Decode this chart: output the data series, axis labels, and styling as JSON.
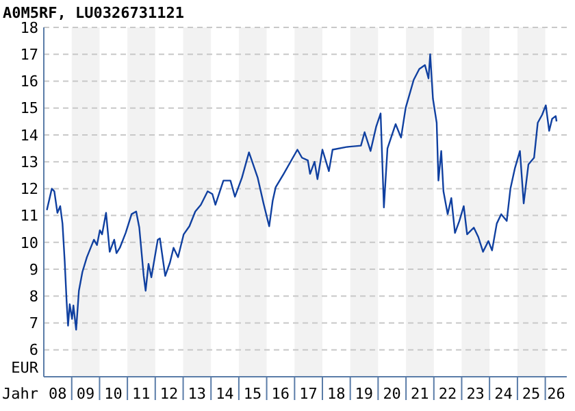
{
  "chart_data": {
    "type": "line",
    "title": "A0M5RF, LU0326731121",
    "xlabel": "Jahr",
    "ylabel": "EUR",
    "xlim": [
      "2008-01-01",
      "2026-10-10"
    ],
    "ylim": [
      5,
      18
    ],
    "xticks": [
      {
        "value": "2008-07-01",
        "label": "08"
      },
      {
        "value": "2009-07-01",
        "label": "09"
      },
      {
        "value": "2010-07-01",
        "label": "10"
      },
      {
        "value": "2011-07-01",
        "label": "11"
      },
      {
        "value": "2012-07-01",
        "label": "12"
      },
      {
        "value": "2013-07-01",
        "label": "13"
      },
      {
        "value": "2014-07-01",
        "label": "14"
      },
      {
        "value": "2015-07-01",
        "label": "15"
      },
      {
        "value": "2016-07-01",
        "label": "16"
      },
      {
        "value": "2017-07-01",
        "label": "17"
      },
      {
        "value": "2018-07-01",
        "label": "18"
      },
      {
        "value": "2019-07-01",
        "label": "19"
      },
      {
        "value": "2020-07-01",
        "label": "20"
      },
      {
        "value": "2021-07-01",
        "label": "21"
      },
      {
        "value": "2022-07-01",
        "label": "22"
      },
      {
        "value": "2023-07-01",
        "label": "23"
      },
      {
        "value": "2024-07-01",
        "label": "24"
      },
      {
        "value": "2025-07-01",
        "label": "25"
      },
      {
        "value": "2026-05-25",
        "label": "26"
      }
    ],
    "yticks": [
      6,
      7,
      8,
      9,
      10,
      11,
      12,
      13,
      14,
      15,
      16,
      17,
      18
    ],
    "grid": "y",
    "marker": "none",
    "line_style": "solid",
    "bands": [
      {
        "axis": "x",
        "from": "2009-01-01",
        "to": "2010-01-01",
        "color": "#f2f2f2"
      },
      {
        "axis": "x",
        "from": "2011-01-01",
        "to": "2012-01-01",
        "color": "#f2f2f2"
      },
      {
        "axis": "x",
        "from": "2013-01-01",
        "to": "2014-01-01",
        "color": "#f2f2f2"
      },
      {
        "axis": "x",
        "from": "2015-01-01",
        "to": "2016-01-01",
        "color": "#f2f2f2"
      },
      {
        "axis": "x",
        "from": "2017-01-01",
        "to": "2018-01-01",
        "color": "#f2f2f2"
      },
      {
        "axis": "x",
        "from": "2019-01-01",
        "to": "2020-01-01",
        "color": "#f2f2f2"
      },
      {
        "axis": "x",
        "from": "2021-01-01",
        "to": "2022-01-01",
        "color": "#f2f2f2"
      },
      {
        "axis": "x",
        "from": "2023-01-01",
        "to": "2024-01-01",
        "color": "#f2f2f2"
      },
      {
        "axis": "x",
        "from": "2025-01-01",
        "to": "2026-01-01",
        "color": "#f2f2f2"
      }
    ],
    "series": [
      {
        "color": "#1040a0",
        "x": [
          "2008-02-10",
          "2008-04-15",
          "2008-05-18",
          "2008-06-27",
          "2008-08-03",
          "2008-09-02",
          "2008-10-01",
          "2008-10-26",
          "2008-11-14",
          "2008-12-06",
          "2009-01-05",
          "2009-01-23",
          "2009-02-28",
          "2009-04-05",
          "2009-05-21",
          "2009-07-19",
          "2009-10-19",
          "2009-11-28",
          "2010-01-05",
          "2010-02-03",
          "2010-03-27",
          "2010-05-14",
          "2010-07-12",
          "2010-08-11",
          "2010-09-24",
          "2010-12-09",
          "2011-02-25",
          "2011-04-26",
          "2011-06-06",
          "2011-08-03",
          "2011-08-28",
          "2011-10-05",
          "2011-11-11",
          "2011-12-20",
          "2012-02-03",
          "2012-03-02",
          "2012-05-11",
          "2012-07-12",
          "2012-08-28",
          "2012-10-26",
          "2013-01-08",
          "2013-03-24",
          "2013-06-09",
          "2013-08-21",
          "2013-11-18",
          "2014-01-19",
          "2014-02-28",
          "2014-06-13",
          "2014-09-13",
          "2014-11-11",
          "2015-02-10",
          "2015-05-14",
          "2015-07-08",
          "2015-09-06",
          "2015-11-21",
          "2016-02-03",
          "2016-03-20",
          "2016-04-28",
          "2016-08-11",
          "2017-02-07",
          "2017-04-08",
          "2017-06-24",
          "2017-07-23",
          "2017-09-20",
          "2017-10-28",
          "2018-01-01",
          "2018-03-27",
          "2018-05-14",
          "2018-11-11",
          "2019-05-21",
          "2019-07-08",
          "2019-09-24",
          "2019-12-06",
          "2020-02-03",
          "2020-03-17",
          "2020-05-03",
          "2020-07-01",
          "2020-08-18",
          "2020-10-28",
          "2020-12-27",
          "2021-04-12",
          "2021-06-24",
          "2021-09-06",
          "2021-10-23",
          "2021-11-14",
          "2021-12-20",
          "2022-02-07",
          "2022-03-02",
          "2022-04-08",
          "2022-05-07",
          "2022-07-01",
          "2022-08-18",
          "2022-10-05",
          "2022-12-02",
          "2023-01-28",
          "2023-03-13",
          "2023-06-09",
          "2023-08-07",
          "2023-10-08",
          "2023-12-17",
          "2024-02-03",
          "2024-04-05",
          "2024-06-02",
          "2024-08-14",
          "2024-10-01",
          "2024-11-28",
          "2025-02-03",
          "2025-03-24",
          "2025-05-25",
          "2025-08-07",
          "2025-09-24",
          "2025-11-21",
          "2026-01-08",
          "2026-02-21",
          "2026-04-01",
          "2026-05-18",
          "2026-05-29"
        ],
        "values": [
          11.2,
          12.0,
          11.9,
          11.1,
          11.35,
          10.7,
          9.3,
          7.8,
          6.9,
          7.7,
          7.15,
          7.65,
          6.75,
          8.2,
          8.9,
          9.45,
          10.1,
          9.9,
          10.45,
          10.3,
          11.1,
          9.65,
          10.1,
          9.6,
          9.8,
          10.35,
          11.05,
          11.15,
          10.55,
          8.75,
          8.2,
          9.2,
          8.7,
          9.35,
          10.1,
          10.15,
          8.75,
          9.25,
          9.8,
          9.45,
          10.3,
          10.6,
          11.15,
          11.4,
          11.9,
          11.8,
          11.4,
          12.3,
          12.3,
          11.7,
          12.4,
          13.35,
          12.9,
          12.4,
          11.45,
          10.6,
          11.55,
          12.05,
          12.55,
          13.45,
          13.15,
          13.05,
          12.55,
          13.0,
          12.35,
          13.45,
          12.65,
          13.45,
          13.55,
          13.6,
          14.1,
          13.4,
          14.3,
          14.8,
          11.3,
          13.5,
          14.0,
          14.4,
          13.9,
          15.0,
          16.05,
          16.45,
          16.6,
          16.1,
          17.0,
          15.35,
          14.45,
          12.3,
          13.4,
          11.9,
          11.05,
          11.65,
          10.35,
          10.8,
          11.35,
          10.3,
          10.55,
          10.2,
          9.65,
          10.05,
          9.7,
          10.7,
          11.05,
          10.8,
          12.0,
          12.75,
          13.4,
          11.45,
          12.9,
          13.15,
          14.45,
          14.75,
          15.1,
          14.15,
          14.6,
          14.7,
          14.5
        ]
      }
    ]
  }
}
